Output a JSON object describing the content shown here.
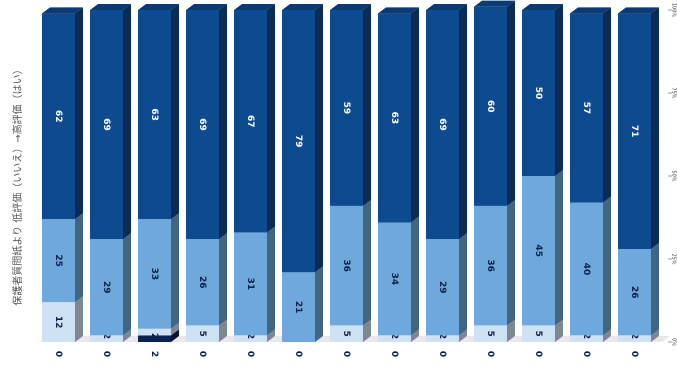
{
  "chart_data": {
    "type": "stacked_bar",
    "y_label": "保護者質問紙より 低評価（いいえ）→高評価（はい）",
    "ylim": [
      0,
      100
    ],
    "yticks": [
      {
        "value": 0,
        "label": "0%"
      },
      {
        "value": 25,
        "label": "25%"
      },
      {
        "value": 50,
        "label": "50%"
      },
      {
        "value": 75,
        "label": "75%"
      },
      {
        "value": 100,
        "label": "100%"
      }
    ],
    "series": [
      {
        "color": "#0b2350",
        "values": [
          0,
          0,
          2,
          0,
          0,
          0,
          0,
          0,
          0,
          0,
          0,
          0,
          0
        ]
      },
      {
        "color": "#cfe2f3",
        "values": [
          12,
          2,
          2,
          5,
          2,
          0,
          5,
          2,
          2,
          5,
          5,
          2,
          2
        ]
      },
      {
        "color": "#6fa8dc",
        "values": [
          25,
          29,
          33,
          26,
          31,
          21,
          36,
          34,
          29,
          36,
          45,
          40,
          26
        ]
      },
      {
        "color": "#0d4a8f",
        "values": [
          62,
          69,
          63,
          69,
          67,
          79,
          59,
          63,
          69,
          60,
          50,
          57,
          71
        ]
      }
    ]
  }
}
